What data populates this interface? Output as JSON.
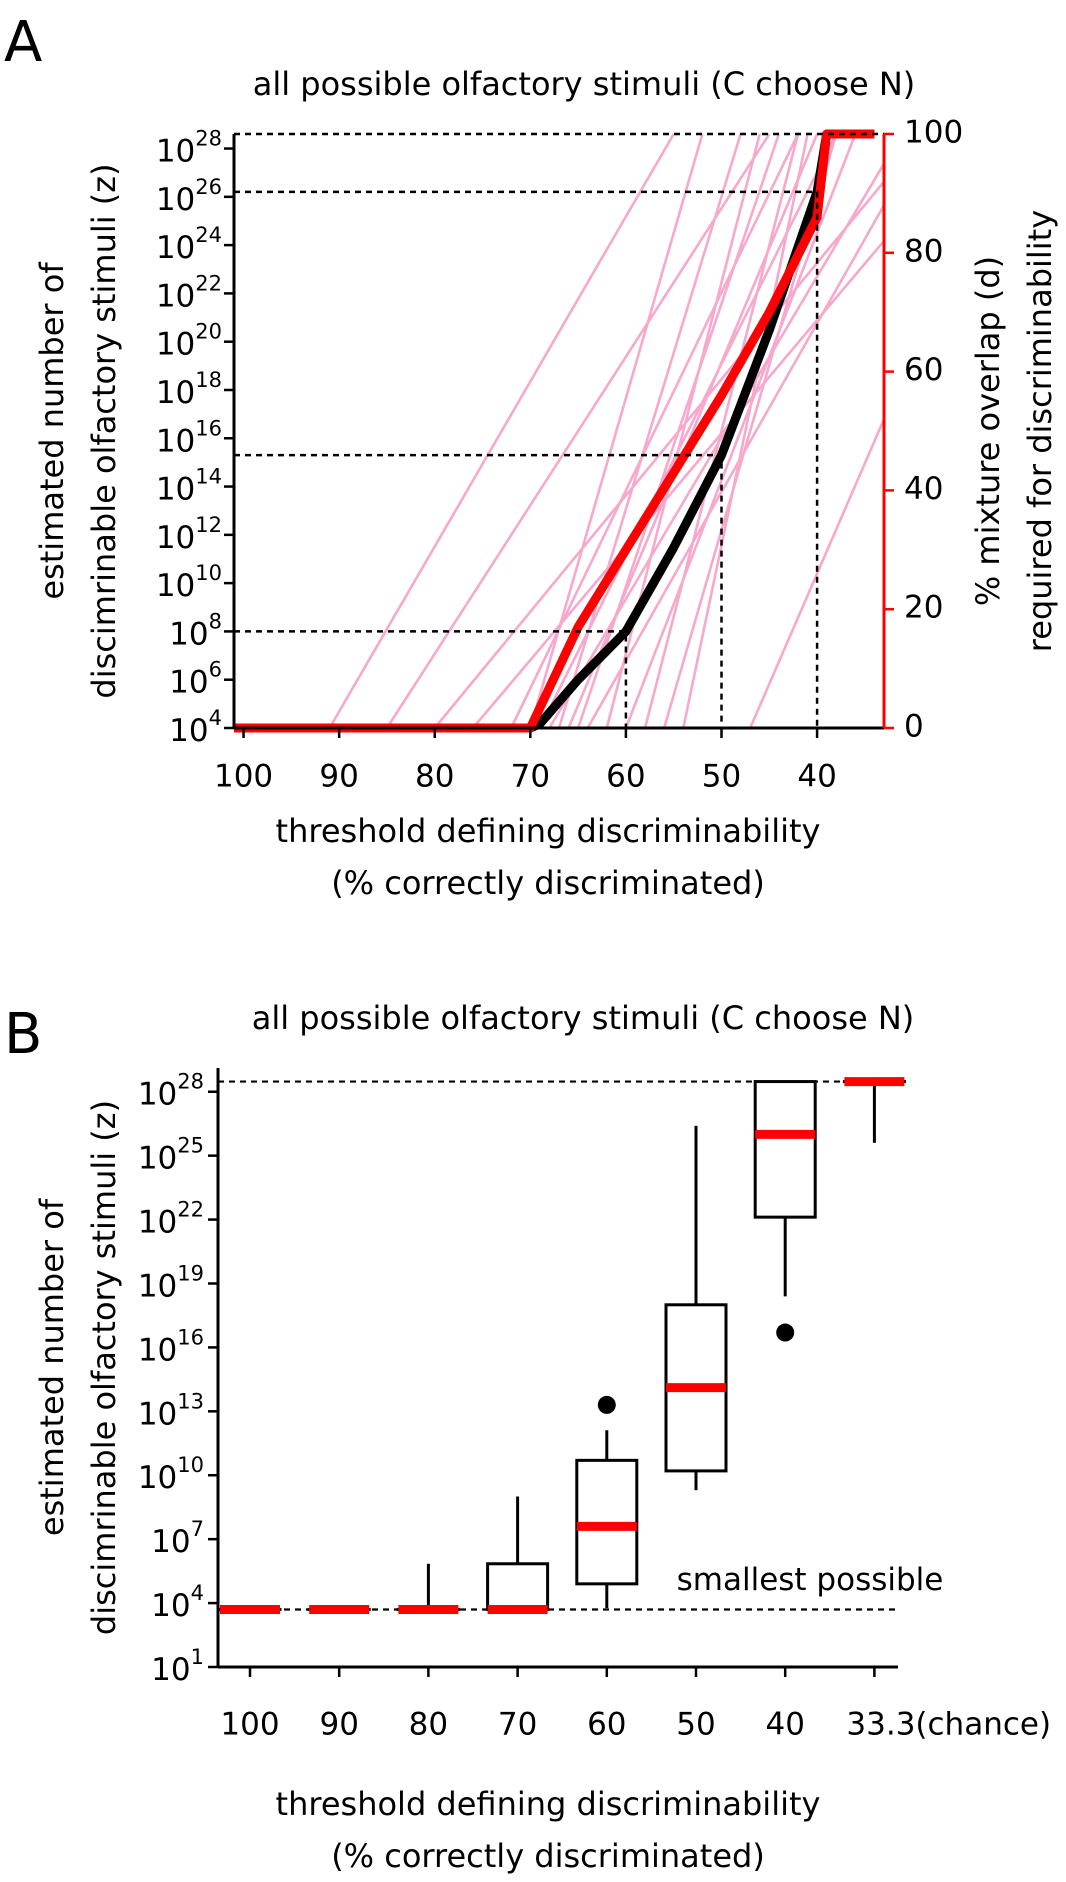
{
  "chart_data": [
    {
      "type": "line",
      "panel": "A",
      "title": "all possible olfactory stimuli (C choose N)",
      "xlabel": [
        "threshold defining discriminability",
        "(% correctly discriminated)"
      ],
      "ylabel": [
        "estimated number of",
        "discimrinable olfactory stimuli (z)"
      ],
      "y2label": [
        "% mixture overlap (d)",
        "required for discriminability"
      ],
      "xlim": [
        101,
        33
      ],
      "xticks": [
        100,
        90,
        80,
        70,
        60,
        50,
        40
      ],
      "ylim": [
        10000.0,
        4e+28
      ],
      "log_y": true,
      "yticks": [
        {
          "value": 10000.0,
          "label": "10",
          "sup": "4"
        },
        {
          "value": 1000000.0,
          "label": "10",
          "sup": "6"
        },
        {
          "value": 100000000.0,
          "label": "10",
          "sup": "8"
        },
        {
          "value": 10000000000.0,
          "label": "10",
          "sup": "10"
        },
        {
          "value": 1000000000000.0,
          "label": "10",
          "sup": "12"
        },
        {
          "value": 100000000000000.0,
          "label": "10",
          "sup": "14"
        },
        {
          "value": 1e+16,
          "label": "10",
          "sup": "16"
        },
        {
          "value": 1e+18,
          "label": "10",
          "sup": "18"
        },
        {
          "value": 1e+20,
          "label": "10",
          "sup": "20"
        },
        {
          "value": 1e+22,
          "label": "10",
          "sup": "22"
        },
        {
          "value": 1e+24,
          "label": "10",
          "sup": "24"
        },
        {
          "value": 1e+26,
          "label": "10",
          "sup": "26"
        },
        {
          "value": 1e+28,
          "label": "10",
          "sup": "28"
        }
      ],
      "y2lim": [
        0,
        100
      ],
      "y2ticks": [
        0,
        20,
        40,
        60,
        80,
        100
      ],
      "y2color": "#ff0000",
      "series": [
        {
          "color": "#f7a8cc",
          "axis": "y2",
          "x": [
            101,
            91,
            55
          ],
          "values": [
            0,
            0,
            100
          ]
        },
        {
          "color": "#f7a8cc",
          "axis": "y2",
          "x": [
            101,
            85,
            45
          ],
          "values": [
            0,
            0,
            100
          ]
        },
        {
          "color": "#f7a8cc",
          "axis": "y2",
          "x": [
            101,
            80,
            33
          ],
          "values": [
            0,
            0,
            92
          ]
        },
        {
          "color": "#f7a8cc",
          "axis": "y2",
          "x": [
            101,
            76,
            33
          ],
          "values": [
            0,
            0,
            82
          ]
        },
        {
          "color": "#f7a8cc",
          "axis": "y2",
          "x": [
            101,
            72,
            42
          ],
          "values": [
            0,
            0,
            100
          ]
        },
        {
          "color": "#f7a8cc",
          "axis": "y2",
          "x": [
            101,
            70,
            52
          ],
          "values": [
            0,
            0,
            100
          ]
        },
        {
          "color": "#f7a8cc",
          "axis": "y2",
          "x": [
            101,
            69,
            38
          ],
          "values": [
            0,
            0,
            100
          ]
        },
        {
          "color": "#f7a8cc",
          "axis": "y2",
          "x": [
            101,
            68,
            33
          ],
          "values": [
            0,
            0,
            95
          ]
        },
        {
          "color": "#f7a8cc",
          "axis": "y2",
          "x": [
            101,
            67,
            48
          ],
          "values": [
            0,
            0,
            100
          ]
        },
        {
          "color": "#f7a8cc",
          "axis": "y2",
          "x": [
            101,
            66,
            40
          ],
          "values": [
            0,
            0,
            100
          ]
        },
        {
          "color": "#f7a8cc",
          "axis": "y2",
          "x": [
            101,
            65,
            44
          ],
          "values": [
            0,
            0,
            100
          ]
        },
        {
          "color": "#f7a8cc",
          "axis": "y2",
          "x": [
            101,
            64,
            33
          ],
          "values": [
            0,
            0,
            88
          ]
        },
        {
          "color": "#f7a8cc",
          "axis": "y2",
          "x": [
            101,
            62,
            46
          ],
          "values": [
            0,
            0,
            100
          ]
        },
        {
          "color": "#f7a8cc",
          "axis": "y2",
          "x": [
            101,
            60,
            36
          ],
          "values": [
            0,
            0,
            100
          ]
        },
        {
          "color": "#f7a8cc",
          "axis": "y2",
          "x": [
            101,
            58,
            42
          ],
          "values": [
            0,
            0,
            100
          ]
        },
        {
          "color": "#f7a8cc",
          "axis": "y2",
          "x": [
            101,
            56,
            38
          ],
          "values": [
            0,
            0,
            100
          ]
        },
        {
          "color": "#f7a8cc",
          "axis": "y2",
          "x": [
            101,
            54,
            41
          ],
          "values": [
            0,
            0,
            100
          ]
        },
        {
          "color": "#f7a8cc",
          "axis": "y2",
          "x": [
            101,
            47,
            33
          ],
          "values": [
            0,
            0,
            52
          ]
        },
        {
          "color": "#000000",
          "x": [
            101,
            70,
            69,
            65,
            60,
            55,
            50,
            45,
            40,
            39
          ],
          "values": [
            10000.0,
            10000.0,
            15000.0,
            1000000.0,
            100000000.0,
            300000000000.0,
            2000000000000000.0,
            3e+20,
            1.6e+26,
            4e+28
          ]
        },
        {
          "color": "#ff0000",
          "axis": "y2",
          "x": [
            101,
            70,
            65,
            60,
            55,
            50,
            45,
            40,
            39,
            34
          ],
          "values": [
            0,
            0,
            17,
            30,
            43,
            56,
            70,
            86,
            100,
            100
          ]
        }
      ],
      "guides": [
        {
          "x": 60,
          "y": 100000000.0
        },
        {
          "x": 50,
          "y": 2000000000000000.0
        },
        {
          "x": 40,
          "y": 1.6e+26
        }
      ]
    },
    {
      "type": "box",
      "panel": "B",
      "title": "all possible olfactory stimuli (C choose N)",
      "xlabel": [
        "threshold defining discriminability",
        "(% correctly discriminated)"
      ],
      "ylabel": [
        "estimated number of",
        "discimrinable olfactory stimuli (z)"
      ],
      "categories": [
        "100",
        "90",
        "80",
        "70",
        "60",
        "50",
        "40",
        "33.3(chance)"
      ],
      "ylim": [
        10,
        1.3e+29
      ],
      "log_y": true,
      "yticks": [
        {
          "value": 10,
          "label": "10",
          "sup": "1"
        },
        {
          "value": 10000.0,
          "label": "10",
          "sup": "4"
        },
        {
          "value": 10000000.0,
          "label": "10",
          "sup": "7"
        },
        {
          "value": 10000000000.0,
          "label": "10",
          "sup": "10"
        },
        {
          "value": 10000000000000.0,
          "label": "10",
          "sup": "13"
        },
        {
          "value": 1e+16,
          "label": "10",
          "sup": "16"
        },
        {
          "value": 1e+19,
          "label": "10",
          "sup": "19"
        },
        {
          "value": 1e+22,
          "label": "10",
          "sup": "22"
        },
        {
          "value": 1e+25,
          "label": "10",
          "sup": "25"
        },
        {
          "value": 1e+28,
          "label": "10",
          "sup": "28"
        }
      ],
      "min": [
        5000.0,
        5000.0,
        5000.0,
        5000.0,
        5800.0,
        2000000000.0,
        2.5e+18,
        4e+25
      ],
      "q1": [
        5000.0,
        5000.0,
        5000.0,
        5000.0,
        80000.0,
        16000000000.0,
        1.3e+22,
        3e+28
      ],
      "median": [
        5000.0,
        5000.0,
        5000.0,
        5000.0,
        40000000.0,
        130000000000000.0,
        1e+26,
        3e+28
      ],
      "q3": [
        5000.0,
        5000.0,
        5000.0,
        700000.0,
        50000000000.0,
        1e+18,
        3e+28,
        3e+28
      ],
      "max": [
        5000.0,
        5000.0,
        700000.0,
        1000000000.0,
        1300000000000.0,
        2.5e+26,
        3e+28,
        3e+28
      ],
      "outliers": [
        [],
        [],
        [],
        [],
        [
          20000000000000.0
        ],
        [],
        [
          5e+16
        ],
        []
      ],
      "median_color": "#ff0000",
      "hlines": [
        {
          "value": 5000.0,
          "label": "smallest possible"
        },
        {
          "value": 3e+28
        }
      ]
    }
  ]
}
